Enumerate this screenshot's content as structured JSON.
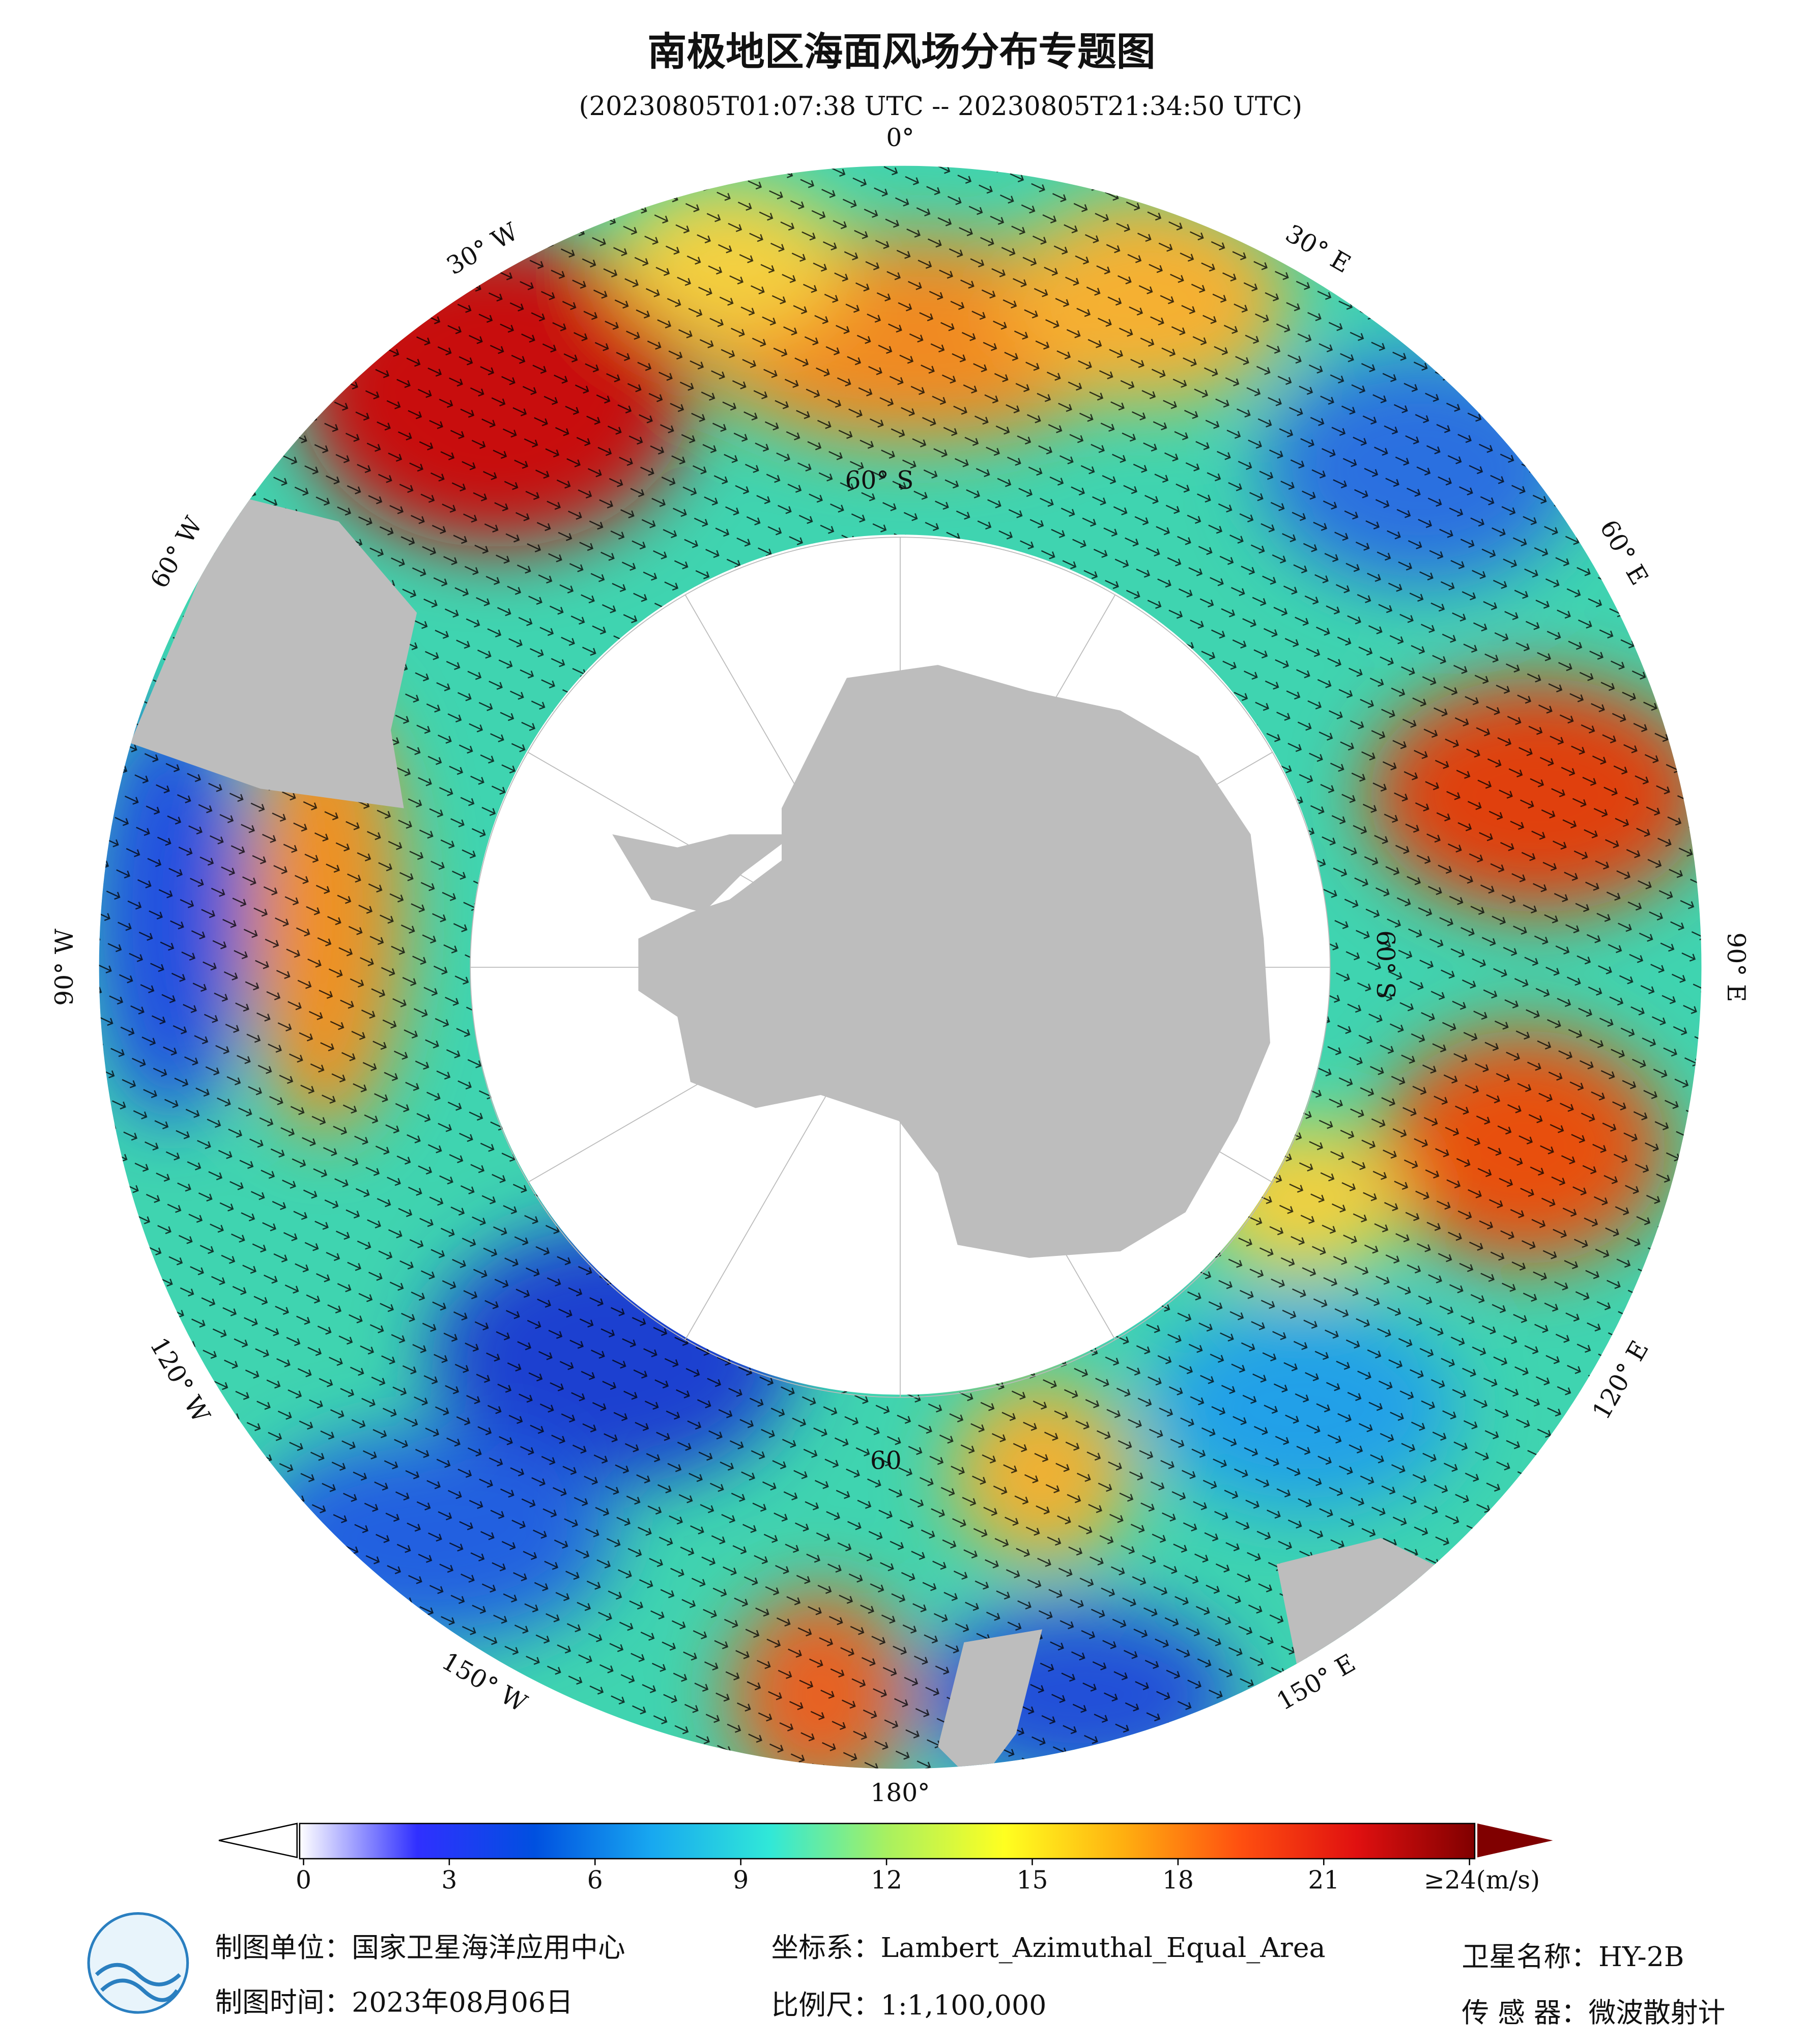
{
  "header": {
    "title": "南极地区海面风场分布专题图",
    "subtitle": "(20230805T01:07:38 UTC -- 20230805T21:34:50 UTC)"
  },
  "map": {
    "longitude_labels": [
      "0°",
      "30° E",
      "60° E",
      "90° E",
      "120° E",
      "150° E",
      "180°",
      "150° W",
      "120° W",
      "90° W",
      "60° W",
      "30° W"
    ],
    "latitude_labels": [
      "60° S",
      "60° S",
      "60"
    ]
  },
  "colorbar": {
    "lim": [
      0,
      24
    ],
    "ticks": [
      0,
      3,
      6,
      9,
      12,
      15,
      18,
      21,
      {
        "value": 24,
        "label": "≥24(m/s)"
      }
    ],
    "colors": [
      "#ffffff",
      "#3030ff",
      "#0050e0",
      "#18a8f0",
      "#30e8d8",
      "#a8f060",
      "#ffff20",
      "#ffb010",
      "#ff5010",
      "#e01010",
      "#800000"
    ]
  },
  "footer": {
    "unit": "制图单位：国家卫星海洋应用中心",
    "crs": "坐标系：Lambert_Azimuthal_Equal_Area",
    "satellite": "卫星名称：HY-2B",
    "date": "制图时间：2023年08月06日",
    "scale": "比例尺：1:1,100,000",
    "sensor": "传 感 器：微波散射计"
  }
}
